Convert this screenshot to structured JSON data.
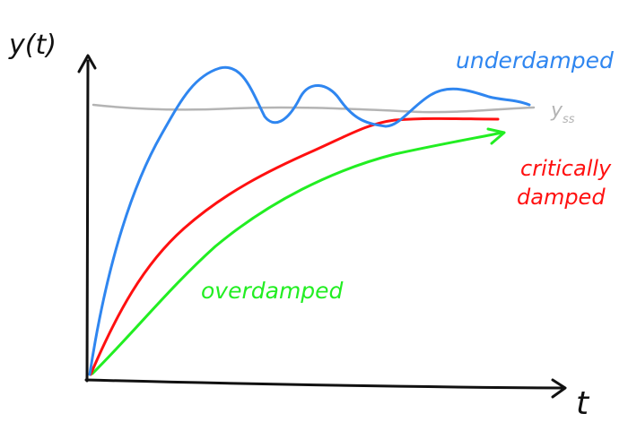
{
  "axes": {
    "y_label": "y(t)",
    "x_label": "t"
  },
  "reference": {
    "label": "y",
    "subscript": "ss",
    "color": "#b4b4b4"
  },
  "curves": [
    {
      "id": "underdamped",
      "label": "underdamped",
      "color": "#2f86f0"
    },
    {
      "id": "critically-damped",
      "label_line1": "critically",
      "label_line2": "damped",
      "color": "#ff1010"
    },
    {
      "id": "overdamped",
      "label": "overdamped",
      "color": "#22ee22"
    }
  ],
  "axis_color": "#111111"
}
